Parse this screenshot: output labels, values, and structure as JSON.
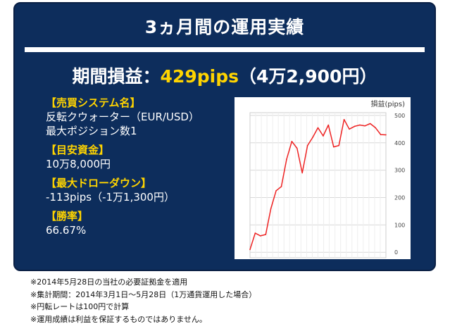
{
  "header": {
    "title": "3ヵ月間の運用実績"
  },
  "summary": {
    "label": "期間損益：",
    "pips": "429pips",
    "yen": "（4万2,900円）"
  },
  "info": [
    {
      "label": "【売買システム名】",
      "values": [
        "反転クウォーター（EUR/USD）",
        "最大ポジション数1"
      ]
    },
    {
      "label": "【目安資金】",
      "values": [
        "10万8,000円"
      ]
    },
    {
      "label": "【最大ドローダウン】",
      "values": [
        "-113pips（-1万1,300円）"
      ]
    },
    {
      "label": "【勝率】",
      "values": [
        "66.67%"
      ]
    }
  ],
  "chart_data": {
    "type": "line",
    "unit_label": "損益(pips)",
    "ylim": [
      -20,
      510
    ],
    "yticks": [
      "500",
      "400",
      "300",
      "200",
      "100",
      "0"
    ],
    "grid": true,
    "series_color": "#ee2222",
    "values": [
      10,
      70,
      60,
      65,
      160,
      225,
      240,
      340,
      405,
      380,
      290,
      390,
      420,
      455,
      425,
      465,
      385,
      390,
      485,
      450,
      460,
      465,
      462,
      470,
      455,
      430,
      429
    ]
  },
  "notes": [
    "※2014年5月28日の当社の必要証拠金を適用",
    "※集計期間：2014年3月1日～5月28日（1万通貨運用した場合）",
    "※円転レートは100円で計算",
    "※運用成績は利益を保証するものではありません。"
  ]
}
